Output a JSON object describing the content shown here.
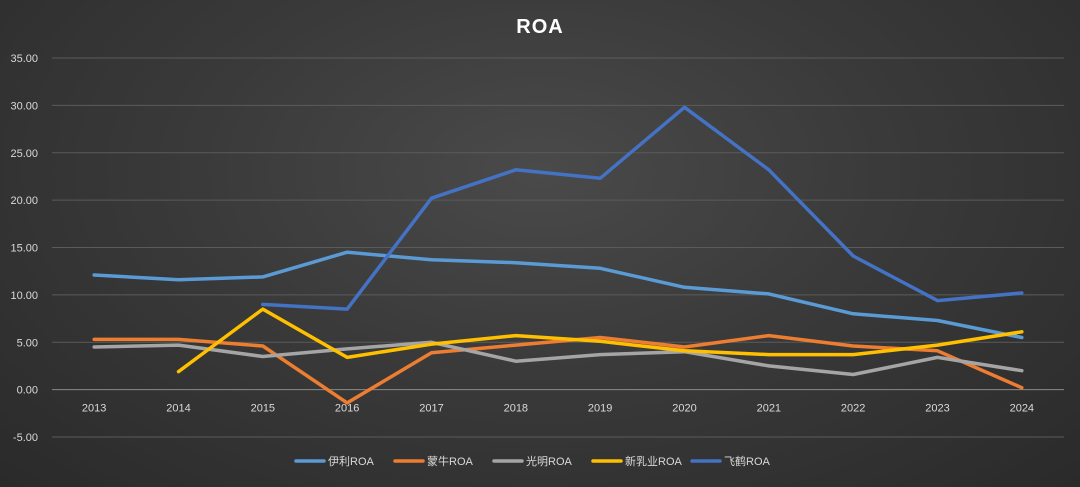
{
  "chart_data": {
    "type": "line",
    "title": "ROA",
    "xlabel": "",
    "ylabel": "",
    "ylim": [
      -5,
      35
    ],
    "ytick_step": 5,
    "ytick_labels": [
      "-5.00",
      "0.00",
      "5.00",
      "10.00",
      "15.00",
      "20.00",
      "25.00",
      "30.00",
      "35.00"
    ],
    "categories": [
      "2013",
      "2014",
      "2015",
      "2016",
      "2017",
      "2018",
      "2019",
      "2020",
      "2021",
      "2022",
      "2023",
      "2024"
    ],
    "grid": true,
    "legend_position": "bottom",
    "series": [
      {
        "name": "伊利ROA",
        "color": "#5b9bd5",
        "values": [
          12.1,
          11.6,
          11.9,
          14.5,
          13.7,
          13.4,
          12.8,
          10.8,
          10.1,
          8.0,
          7.3,
          5.5
        ]
      },
      {
        "name": "蒙牛ROA",
        "color": "#ed7d31",
        "values": [
          5.3,
          5.3,
          4.6,
          -1.4,
          3.9,
          4.7,
          5.5,
          4.5,
          5.7,
          4.6,
          4.1,
          0.2
        ]
      },
      {
        "name": "光明ROA",
        "color": "#a5a5a5",
        "values": [
          4.5,
          4.7,
          3.5,
          4.3,
          5.0,
          3.0,
          3.7,
          4.0,
          2.5,
          1.6,
          3.4,
          2.0
        ]
      },
      {
        "name": "新乳业ROA",
        "color": "#ffc000",
        "values": [
          null,
          1.9,
          8.5,
          3.4,
          4.8,
          5.7,
          5.1,
          4.1,
          3.7,
          3.7,
          4.7,
          6.1
        ]
      },
      {
        "name": "飞鹤ROA",
        "color": "#4472c4",
        "values": [
          null,
          null,
          9.0,
          8.5,
          20.2,
          23.2,
          22.3,
          29.8,
          23.2,
          14.1,
          9.4,
          10.2
        ]
      }
    ]
  }
}
